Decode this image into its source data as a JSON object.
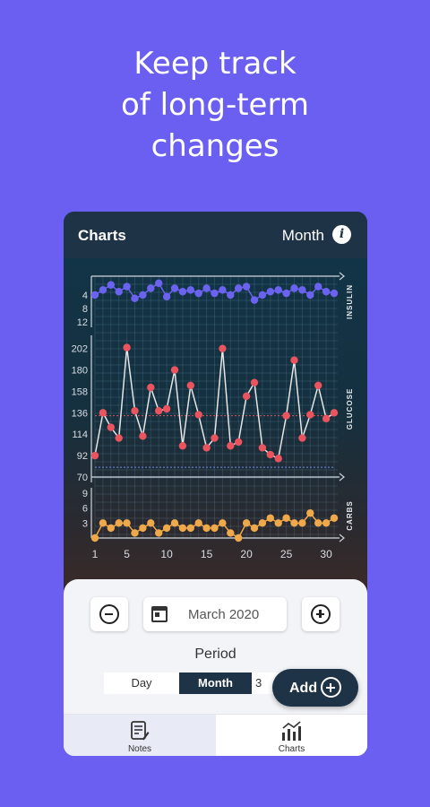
{
  "promo": {
    "line1": "Keep track",
    "line2": "of long-term",
    "line3": "changes"
  },
  "header": {
    "title": "Charts",
    "period": "Month",
    "info_glyph": "i"
  },
  "chart_data": [
    {
      "type": "line",
      "ylabel": "INSULIN",
      "ylim": [
        12,
        0
      ],
      "yticks": [
        "4",
        "8",
        "12"
      ],
      "x": [
        1,
        2,
        3,
        4,
        5,
        6,
        7,
        8,
        9,
        10,
        11,
        12,
        13,
        14,
        15,
        16,
        17,
        18,
        19,
        20,
        21,
        22,
        23,
        24,
        25,
        26,
        27,
        28,
        29,
        30,
        31
      ],
      "values": [
        4,
        2.5,
        1,
        3,
        1.5,
        5,
        4,
        2,
        0.5,
        4.5,
        2,
        3,
        2.5,
        3.5,
        2,
        3.5,
        2.5,
        4,
        2,
        1.5,
        5.5,
        4,
        3,
        2.5,
        3.5,
        2,
        2.5,
        4,
        1.5,
        3,
        3.5
      ],
      "color": "#6b63f0"
    },
    {
      "type": "line",
      "ylabel": "GLUCOSE",
      "ylim": [
        70,
        210
      ],
      "yticks": [
        "70",
        "92",
        "114",
        "136",
        "158",
        "180",
        "202"
      ],
      "x": [
        1,
        2,
        3,
        4,
        5,
        6,
        7,
        8,
        9,
        10,
        11,
        12,
        13,
        14,
        15,
        16,
        17,
        18,
        19,
        20,
        21,
        22,
        23,
        24,
        25,
        26,
        27,
        28,
        29,
        30,
        31
      ],
      "values": [
        92,
        136,
        121,
        110,
        203,
        138,
        112,
        162,
        138,
        140,
        180,
        102,
        164,
        134,
        100,
        110,
        202,
        102,
        106,
        153,
        167,
        100,
        93,
        89,
        133,
        190,
        110,
        134,
        164,
        130,
        136
      ],
      "color": "#e9545f",
      "target_high": 133,
      "target_low": 80
    },
    {
      "type": "line",
      "ylabel": "CARBS",
      "ylim": [
        0,
        9
      ],
      "yticks": [
        "3",
        "6",
        "9"
      ],
      "x": [
        1,
        2,
        3,
        4,
        5,
        6,
        7,
        8,
        9,
        10,
        11,
        12,
        13,
        14,
        15,
        16,
        17,
        18,
        19,
        20,
        21,
        22,
        23,
        24,
        25,
        26,
        27,
        28,
        29,
        30,
        31
      ],
      "values": [
        0,
        3,
        2,
        3,
        3,
        1,
        2,
        3,
        1,
        2,
        3,
        2,
        2,
        3,
        2,
        2,
        3,
        1,
        0,
        3,
        2,
        3,
        4,
        3,
        4,
        3,
        3,
        5,
        3,
        3,
        4
      ],
      "color": "#f0a94a"
    }
  ],
  "x_axis": {
    "ticks": [
      "1",
      "5",
      "10",
      "15",
      "20",
      "25",
      "30"
    ]
  },
  "date_nav": {
    "date": "March 2020"
  },
  "period_selector": {
    "label": "Period",
    "options": [
      "Day",
      "Month",
      "3"
    ],
    "selected": "Month"
  },
  "add_button": {
    "label": "Add"
  },
  "tabs": [
    {
      "label": "Notes",
      "icon": "notes-icon",
      "active": true
    },
    {
      "label": "Charts",
      "icon": "charts-icon",
      "active": false
    }
  ]
}
